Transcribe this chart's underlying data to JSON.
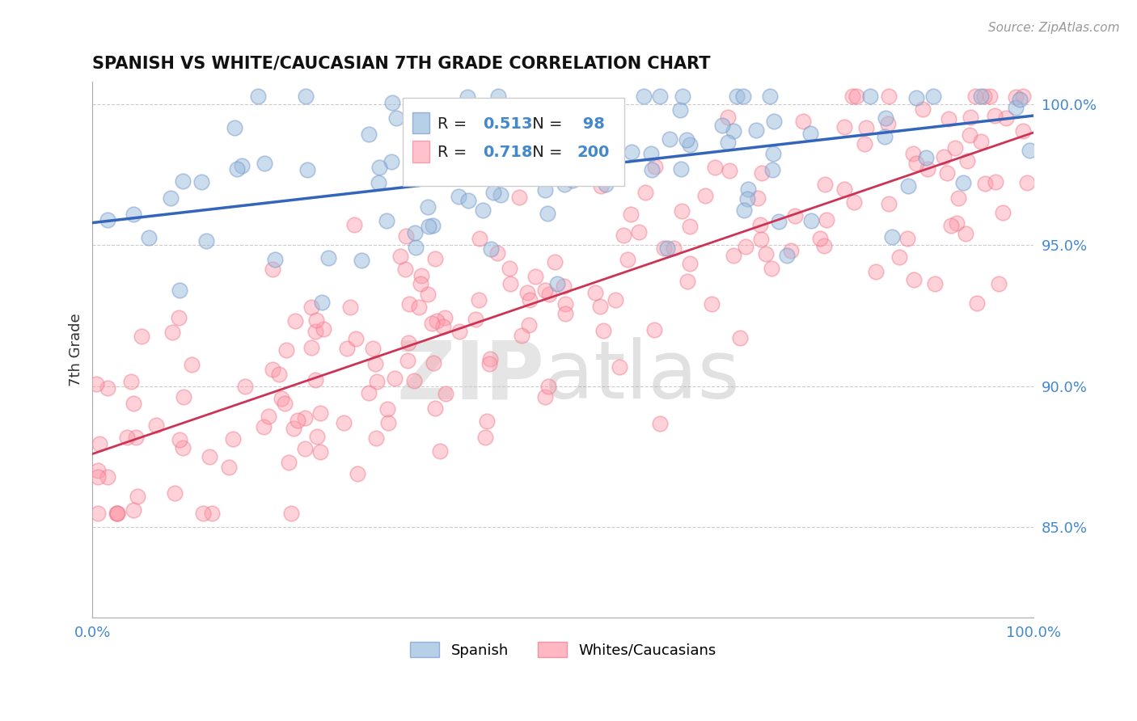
{
  "title": "SPANISH VS WHITE/CAUCASIAN 7TH GRADE CORRELATION CHART",
  "source": "Source: ZipAtlas.com",
  "ylabel": "7th Grade",
  "xlim": [
    0.0,
    1.0
  ],
  "ylim": [
    0.818,
    1.008
  ],
  "ytick_values": [
    0.85,
    0.9,
    0.95,
    1.0
  ],
  "ytick_labels": [
    "85.0%",
    "90.0%",
    "95.0%",
    "100.0%"
  ],
  "xtick_values": [
    0.0,
    1.0
  ],
  "xtick_labels": [
    "0.0%",
    "100.0%"
  ],
  "blue_face_color": "#99BBDD",
  "blue_edge_color": "#7799CC",
  "pink_face_color": "#FF99AA",
  "pink_edge_color": "#EE7788",
  "blue_line_color": "#3366BB",
  "pink_line_color": "#CC3355",
  "axis_label_color": "#4488CC",
  "grid_color": "#CCCCCC",
  "R_blue": 0.513,
  "N_blue": 98,
  "R_pink": 0.718,
  "N_pink": 200,
  "blue_intercept": 0.958,
  "blue_slope": 0.038,
  "pink_intercept": 0.876,
  "pink_slope": 0.114,
  "legend_blue_label": "Spanish",
  "legend_pink_label": "Whites/Caucasians",
  "bg_color": "#ffffff"
}
